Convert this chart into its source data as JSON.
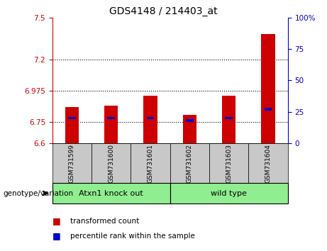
{
  "title": "GDS4148 / 214403_at",
  "samples": [
    "GSM731599",
    "GSM731600",
    "GSM731601",
    "GSM731602",
    "GSM731603",
    "GSM731604"
  ],
  "group_labels": [
    "Atxn1 knock out",
    "wild type"
  ],
  "transformed_counts": [
    6.86,
    6.87,
    6.94,
    6.8,
    6.94,
    7.38
  ],
  "percentile_ranks": [
    20,
    20,
    20,
    18,
    20,
    27
  ],
  "ylim_left": [
    6.6,
    7.5
  ],
  "ylim_right": [
    0,
    100
  ],
  "yticks_left": [
    6.6,
    6.75,
    6.975,
    7.2,
    7.5
  ],
  "yticks_right": [
    0,
    25,
    50,
    75,
    100
  ],
  "ytick_labels_left": [
    "6.6",
    "6.75",
    "6.975",
    "7.2",
    "7.5"
  ],
  "ytick_labels_right": [
    "0",
    "25",
    "50",
    "75",
    "100%"
  ],
  "hlines": [
    6.75,
    6.975,
    7.2
  ],
  "bar_width": 0.35,
  "red_color": "#CC0000",
  "blue_color": "#0000CC",
  "background_sample": "#C8C8C8",
  "background_group": "#90EE90",
  "left_axis_color": "#CC0000",
  "right_axis_color": "#0000CC",
  "legend_label_red": "transformed count",
  "legend_label_blue": "percentile rank within the sample",
  "genotype_label": "genotype/variation",
  "split_index": 3
}
